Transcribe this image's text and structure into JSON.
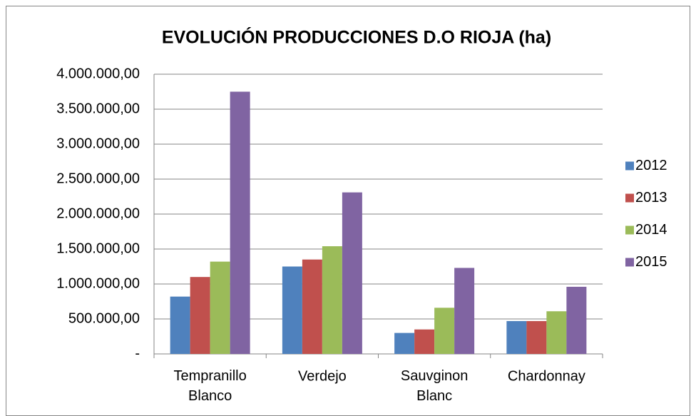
{
  "chart_data": {
    "type": "bar",
    "title": "EVOLUCIÓN  PRODUCCIONES  D.O RIOJA (ha)",
    "categories": [
      "Tempranillo Blanco",
      "Verdejo",
      "Sauvginon Blanc",
      "Chardonnay"
    ],
    "series": [
      {
        "name": "2012",
        "color": "#4f81bd",
        "values": [
          820000,
          1250000,
          300000,
          470000
        ]
      },
      {
        "name": "2013",
        "color": "#c0504d",
        "values": [
          1100000,
          1350000,
          350000,
          470000
        ]
      },
      {
        "name": "2014",
        "color": "#9bbb59",
        "values": [
          1320000,
          1540000,
          660000,
          610000
        ]
      },
      {
        "name": "2015",
        "color": "#8064a2",
        "values": [
          3750000,
          2310000,
          1230000,
          960000
        ]
      }
    ],
    "ylim": [
      0,
      4000000
    ],
    "yticks": [
      {
        "value": 0,
        "label": "-"
      },
      {
        "value": 500000,
        "label": "500.000,00"
      },
      {
        "value": 1000000,
        "label": "1.000.000,00"
      },
      {
        "value": 1500000,
        "label": "1.500.000,00"
      },
      {
        "value": 2000000,
        "label": "2.000.000,00"
      },
      {
        "value": 2500000,
        "label": "2.500.000,00"
      },
      {
        "value": 3000000,
        "label": "3.000.000,00"
      },
      {
        "value": 3500000,
        "label": "3.500.000,00"
      },
      {
        "value": 4000000,
        "label": "4.000.000,00"
      }
    ],
    "grid": true,
    "legend": "right"
  }
}
